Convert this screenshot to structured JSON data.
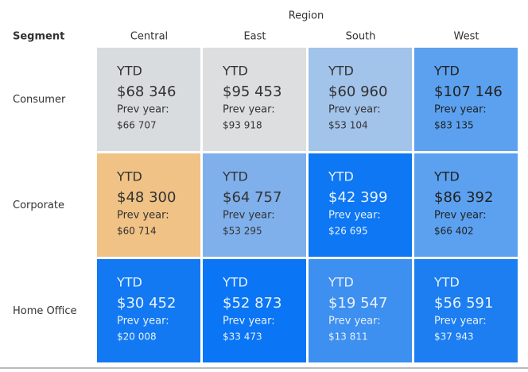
{
  "header": {
    "column_title": "Region",
    "row_title": "Segment"
  },
  "table": {
    "columns": [
      "Central",
      "East",
      "South",
      "West"
    ],
    "rows": [
      {
        "label": "Consumer",
        "cells": [
          {
            "label": "YTD",
            "ytd": "$68 346",
            "prev_label": "Prev year:",
            "prev": "$66 707",
            "color": "#d9dcdf",
            "text_color": "#333333"
          },
          {
            "label": "YTD",
            "ytd": "$95 453",
            "prev_label": "Prev year:",
            "prev": "$93 918",
            "color": "#dcdedf",
            "text_color": "#333333"
          },
          {
            "label": "YTD",
            "ytd": "$60 960",
            "prev_label": "Prev year:",
            "prev": "$53 104",
            "color": "#a2c3ea",
            "text_color": "#333333"
          },
          {
            "label": "YTD",
            "ytd": "$107 146",
            "prev_label": "Prev year:",
            "prev": "$83 135",
            "color": "#5ba1f0",
            "text_color": "#222222"
          }
        ]
      },
      {
        "label": "Corporate",
        "cells": [
          {
            "label": "YTD",
            "ytd": "$48 300",
            "prev_label": "Prev year:",
            "prev": "$60 714",
            "color": "#f0c285",
            "text_color": "#333333"
          },
          {
            "label": "YTD",
            "ytd": "$64 757",
            "prev_label": "Prev year:",
            "prev": "$53 295",
            "color": "#7fb0ec",
            "text_color": "#333333"
          },
          {
            "label": "YTD",
            "ytd": "$42 399",
            "prev_label": "Prev year:",
            "prev": "$26 695",
            "color": "#0d77f4",
            "text_color": "#e8f1ff"
          },
          {
            "label": "YTD",
            "ytd": "$86 392",
            "prev_label": "Prev year:",
            "prev": "$66 402",
            "color": "#5ba1f0",
            "text_color": "#222222"
          }
        ]
      },
      {
        "label": "Home Office",
        "cells": [
          {
            "label": "YTD",
            "ytd": "$30 452",
            "prev_label": "Prev year:",
            "prev": "$20 008",
            "color": "#1279f2",
            "text_color": "#e8f1ff"
          },
          {
            "label": "YTD",
            "ytd": "$52 873",
            "prev_label": "Prev year:",
            "prev": "$33 473",
            "color": "#0a75f5",
            "text_color": "#e8f1ff"
          },
          {
            "label": "YTD",
            "ytd": "$19 547",
            "prev_label": "Prev year:",
            "prev": "$13 811",
            "color": "#3d8ff0",
            "text_color": "#e8f1ff"
          },
          {
            "label": "YTD",
            "ytd": "$56 591",
            "prev_label": "Prev year:",
            "prev": "$37 943",
            "color": "#1c7ef0",
            "text_color": "#e8f1ff"
          }
        ]
      }
    ]
  }
}
